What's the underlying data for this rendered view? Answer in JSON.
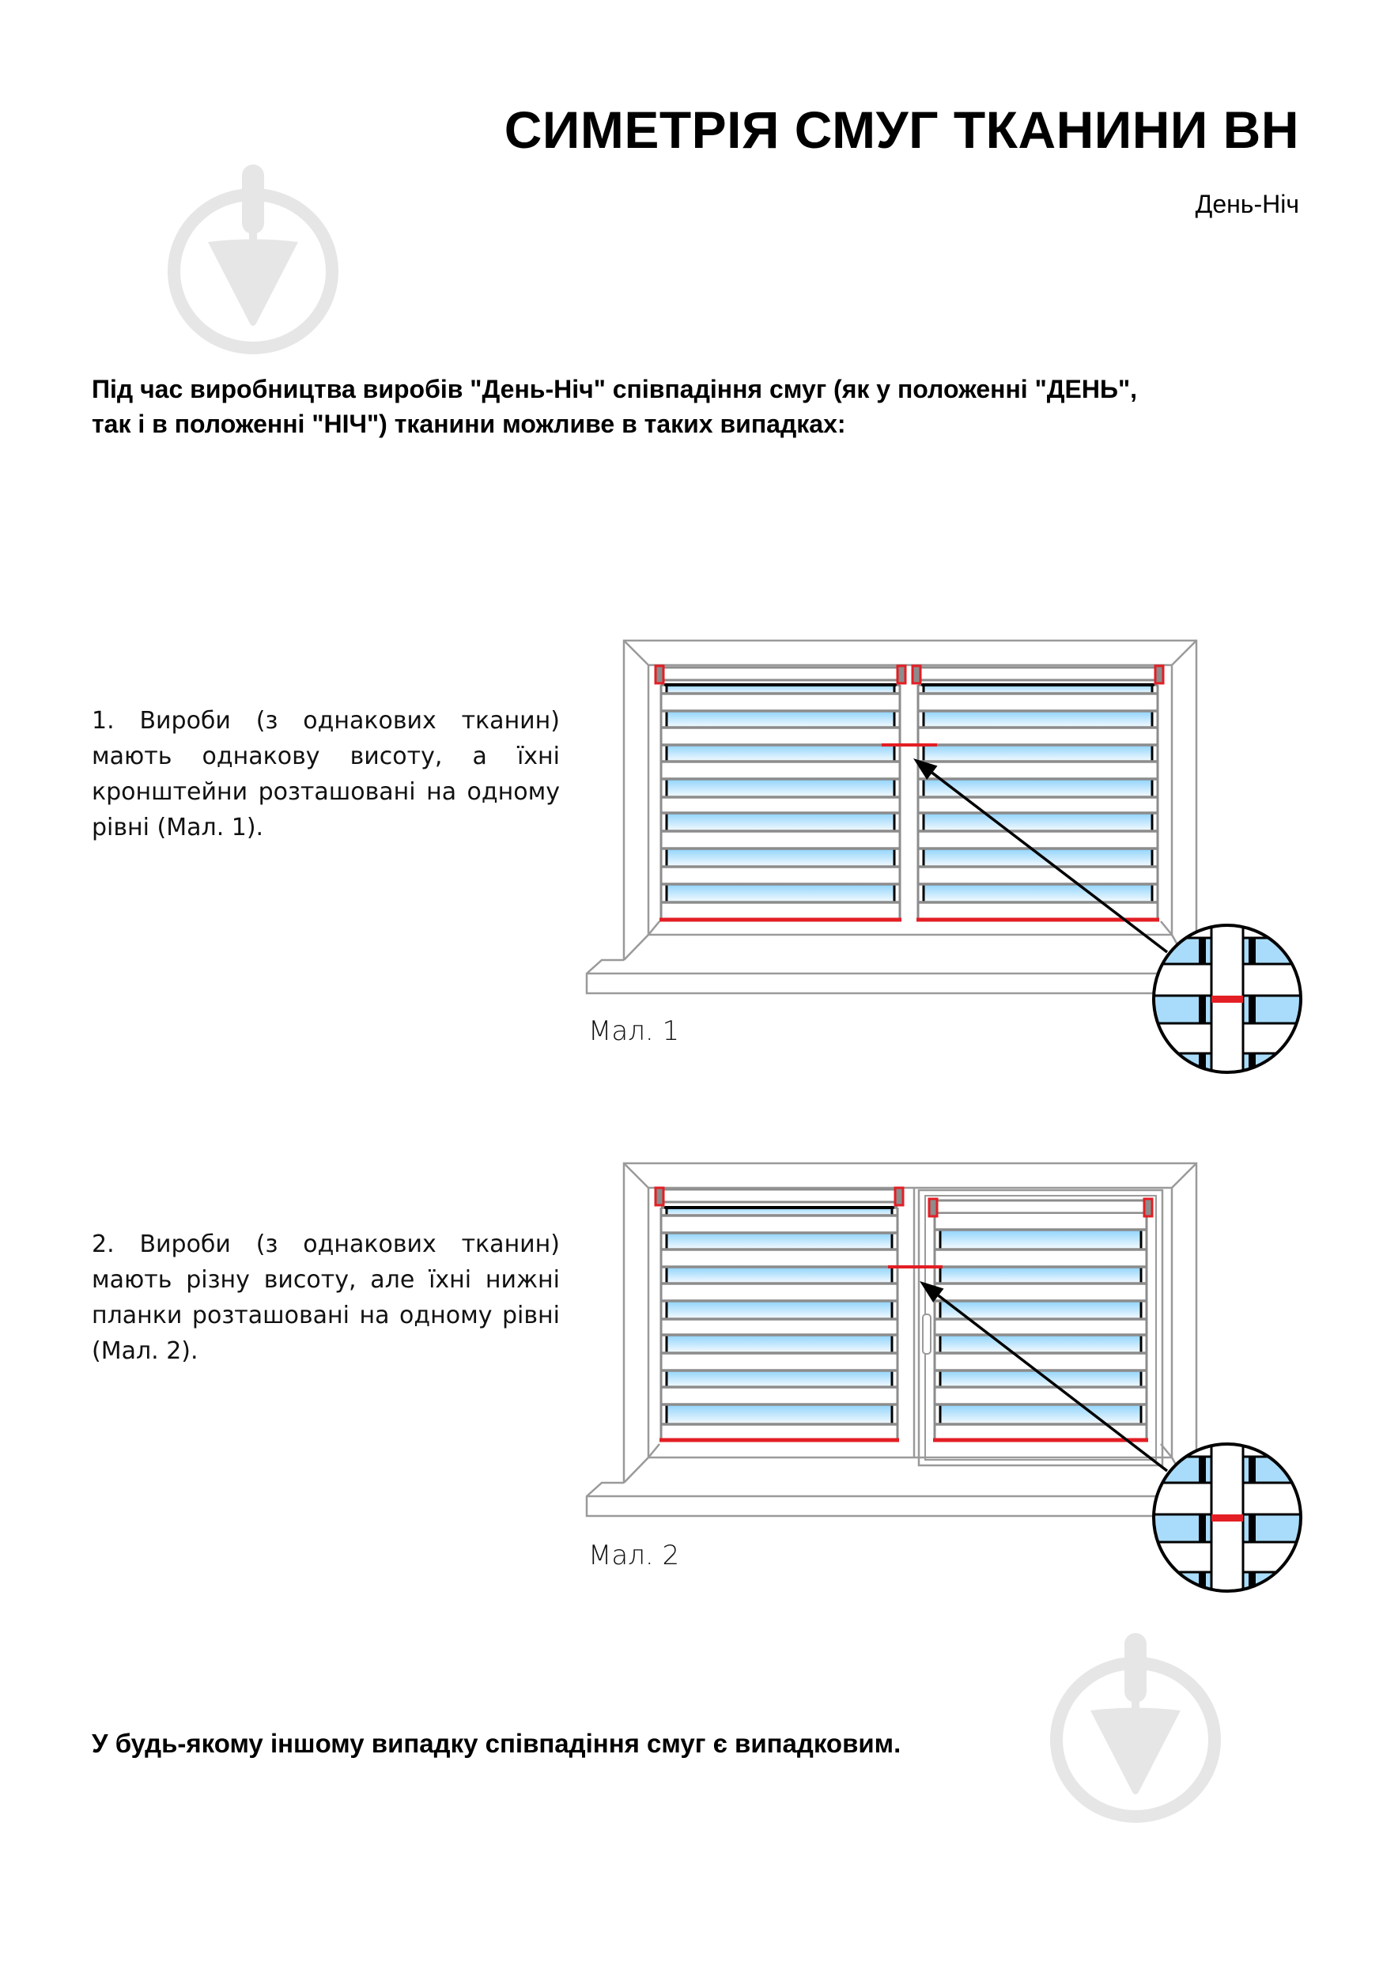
{
  "header": {
    "title": "СИМЕТРІЯ СМУГ ТКАНИНИ ВН",
    "subtitle": "День-Ніч"
  },
  "intro": {
    "lines": [
      "Під час виробництва виробів \"День-Ніч\" співпадіння смуг (як у положенні \"ДЕНЬ\",",
      "так і в положенні \"НІЧ\") тканини можливе в таких випадках:"
    ]
  },
  "cases": [
    {
      "text": "1. Вироби (з однакових тканин) мають однакову висоту, а їхні кронштейни розташовані на одному рівні (Мал. 1).",
      "caption": "Мал. 1"
    },
    {
      "text": "2. Вироби (з однакових тканин) мають різну висоту, але їхні нижні планки розташовані на одному рівні (Мал. 2).",
      "caption": "Мал. 2"
    }
  ],
  "footer": {
    "note": "У будь-якому іншому випадку співпадіння смуг є випадковим."
  },
  "icons": [
    "trowel-watermark-icon",
    "window-blind-figure",
    "magnifier-detail-icon",
    "arrow-icon"
  ],
  "colors": {
    "accent_red": "#e31e24",
    "fabric_blue": "#8fd3fb",
    "frame_gray": "#9a9a9a",
    "stripe_gray": "#8c8c8c",
    "watermark": "#e6e6e6"
  }
}
